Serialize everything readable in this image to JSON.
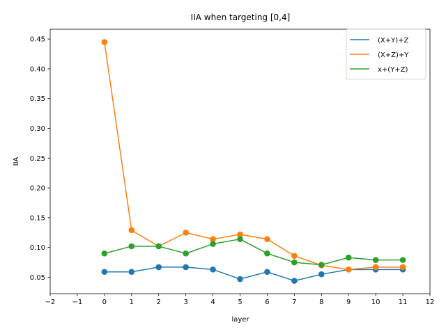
{
  "chart_data": {
    "type": "line",
    "title": "IIA when targeting [0,4]",
    "xlabel": "layer",
    "ylabel": "IIA",
    "xlim": [
      -2,
      12
    ],
    "ylim": [
      0.0225,
      0.4665
    ],
    "xticks": [
      -2,
      -1,
      0,
      1,
      2,
      3,
      4,
      5,
      6,
      7,
      8,
      9,
      10,
      11,
      12
    ],
    "xtick_labels": [
      "−2",
      "−1",
      "0",
      "1",
      "2",
      "3",
      "4",
      "5",
      "6",
      "7",
      "8",
      "9",
      "10",
      "11",
      "12"
    ],
    "yticks": [
      0.05,
      0.1,
      0.15,
      0.2,
      0.25,
      0.3,
      0.35,
      0.4,
      0.45
    ],
    "ytick_labels": [
      "0.05",
      "0.10",
      "0.15",
      "0.20",
      "0.25",
      "0.30",
      "0.35",
      "0.40",
      "0.45"
    ],
    "grid": false,
    "legend_position": "top-right",
    "x": [
      0,
      1,
      2,
      3,
      4,
      5,
      6,
      7,
      8,
      9,
      10,
      11
    ],
    "series": [
      {
        "name": "(X+Y)+Z",
        "color": "#1f77b4",
        "values": [
          0.059,
          0.059,
          0.067,
          0.067,
          0.063,
          0.047,
          0.059,
          0.044,
          0.055,
          0.063,
          0.063,
          0.063
        ]
      },
      {
        "name": "(X+Z)+Y",
        "color": "#ff7f0e",
        "values": [
          0.445,
          0.129,
          0.102,
          0.125,
          0.114,
          0.122,
          0.114,
          0.086,
          0.07,
          0.063,
          0.067,
          0.067
        ]
      },
      {
        "name": "x+(Y+Z)",
        "color": "#2ca02c",
        "values": [
          0.09,
          0.102,
          0.102,
          0.09,
          0.106,
          0.114,
          0.09,
          0.075,
          0.071,
          0.083,
          0.079,
          0.079
        ]
      }
    ]
  }
}
